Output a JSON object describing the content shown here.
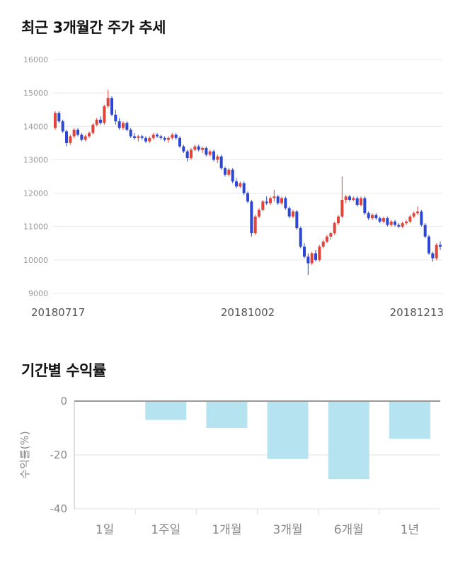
{
  "page": {
    "price_chart_title": "최근 3개월간 주가 추세",
    "returns_chart_title": "기간별 수익률"
  },
  "chart_data": [
    {
      "type": "candlestick",
      "title": "최근 3개월간 주가 추세",
      "ylim": [
        9000,
        16000
      ],
      "yticks": [
        16000,
        15000,
        14000,
        13000,
        12000,
        11000,
        10000,
        9000
      ],
      "xtick_labels": [
        "20180717",
        "20181002",
        "20181213"
      ],
      "up_color": "#e0443b",
      "down_color": "#2d46d4",
      "grid_color": "#e8e8e8",
      "axis_text_color": "#999999",
      "xlabel_color": "#555555",
      "candles": [
        [
          13950,
          14450,
          13900,
          14400
        ],
        [
          14400,
          14450,
          14100,
          14150
        ],
        [
          14150,
          14200,
          13800,
          13850
        ],
        [
          13850,
          13900,
          13400,
          13500
        ],
        [
          13500,
          13750,
          13450,
          13700
        ],
        [
          13700,
          13950,
          13650,
          13900
        ],
        [
          13900,
          13950,
          13700,
          13750
        ],
        [
          13750,
          13800,
          13550,
          13600
        ],
        [
          13600,
          13750,
          13550,
          13700
        ],
        [
          13700,
          13850,
          13650,
          13800
        ],
        [
          13800,
          14100,
          13750,
          14050
        ],
        [
          14050,
          14250,
          14000,
          14200
        ],
        [
          14200,
          14300,
          14050,
          14100
        ],
        [
          14100,
          14650,
          14050,
          14600
        ],
        [
          14600,
          15100,
          14550,
          14850
        ],
        [
          14850,
          14900,
          14300,
          14350
        ],
        [
          14350,
          14500,
          14050,
          14150
        ],
        [
          14150,
          14250,
          13900,
          13950
        ],
        [
          13950,
          14150,
          13900,
          14100
        ],
        [
          14100,
          14150,
          13850,
          13900
        ],
        [
          13900,
          13950,
          13650,
          13700
        ],
        [
          13700,
          13800,
          13600,
          13650
        ],
        [
          13650,
          13750,
          13550,
          13700
        ],
        [
          13700,
          13750,
          13600,
          13650
        ],
        [
          13650,
          13700,
          13500,
          13550
        ],
        [
          13550,
          13700,
          13500,
          13650
        ],
        [
          13650,
          13800,
          13600,
          13750
        ],
        [
          13750,
          13800,
          13650,
          13700
        ],
        [
          13700,
          13750,
          13600,
          13650
        ],
        [
          13650,
          13700,
          13550,
          13600
        ],
        [
          13600,
          13700,
          13500,
          13650
        ],
        [
          13650,
          13800,
          13600,
          13750
        ],
        [
          13750,
          13800,
          13600,
          13650
        ],
        [
          13650,
          13700,
          13350,
          13400
        ],
        [
          13400,
          13450,
          13200,
          13250
        ],
        [
          13250,
          13300,
          12950,
          13050
        ],
        [
          13050,
          13350,
          13000,
          13300
        ],
        [
          13300,
          13450,
          13250,
          13400
        ],
        [
          13400,
          13450,
          13250,
          13300
        ],
        [
          13300,
          13400,
          13200,
          13350
        ],
        [
          13350,
          13400,
          13100,
          13150
        ],
        [
          13150,
          13300,
          13100,
          13250
        ],
        [
          13250,
          13300,
          12950,
          13000
        ],
        [
          13000,
          13150,
          12900,
          13100
        ],
        [
          13100,
          13150,
          12700,
          12750
        ],
        [
          12750,
          12800,
          12500,
          12550
        ],
        [
          12550,
          12750,
          12500,
          12700
        ],
        [
          12700,
          12750,
          12300,
          12350
        ],
        [
          12350,
          12450,
          12150,
          12200
        ],
        [
          12200,
          12350,
          12150,
          12300
        ],
        [
          12300,
          12350,
          11950,
          12000
        ],
        [
          12000,
          12050,
          11700,
          11750
        ],
        [
          11750,
          11800,
          10700,
          10800
        ],
        [
          10800,
          11350,
          10750,
          11300
        ],
        [
          11300,
          11550,
          11250,
          11500
        ],
        [
          11500,
          11800,
          11450,
          11750
        ],
        [
          11750,
          11900,
          11650,
          11700
        ],
        [
          11700,
          11900,
          11650,
          11850
        ],
        [
          11850,
          12100,
          11750,
          11900
        ],
        [
          11900,
          11950,
          11650,
          11700
        ],
        [
          11700,
          11900,
          11650,
          11850
        ],
        [
          11850,
          11900,
          11500,
          11550
        ],
        [
          11550,
          11600,
          11250,
          11300
        ],
        [
          11300,
          11500,
          11250,
          11450
        ],
        [
          11450,
          11500,
          10900,
          10950
        ],
        [
          10950,
          11000,
          10350,
          10400
        ],
        [
          10400,
          10500,
          10050,
          10100
        ],
        [
          10100,
          10200,
          9550,
          9900
        ],
        [
          9900,
          10250,
          9850,
          10200
        ],
        [
          10200,
          10300,
          9950,
          10000
        ],
        [
          10000,
          10450,
          9950,
          10400
        ],
        [
          10400,
          10600,
          10350,
          10550
        ],
        [
          10550,
          10750,
          10500,
          10700
        ],
        [
          10700,
          10850,
          10600,
          10800
        ],
        [
          10800,
          11150,
          10750,
          11100
        ],
        [
          11100,
          11350,
          11050,
          11300
        ],
        [
          11300,
          12500,
          11250,
          11800
        ],
        [
          11800,
          11950,
          11700,
          11900
        ],
        [
          11900,
          11950,
          11750,
          11800
        ],
        [
          11800,
          11900,
          11750,
          11850
        ],
        [
          11850,
          11900,
          11600,
          11650
        ],
        [
          11650,
          11900,
          11600,
          11850
        ],
        [
          11850,
          11900,
          11350,
          11400
        ],
        [
          11400,
          11450,
          11200,
          11250
        ],
        [
          11250,
          11400,
          11200,
          11350
        ],
        [
          11350,
          11400,
          11200,
          11250
        ],
        [
          11250,
          11300,
          11100,
          11150
        ],
        [
          11150,
          11300,
          11100,
          11250
        ],
        [
          11250,
          11300,
          11000,
          11050
        ],
        [
          11050,
          11200,
          11000,
          11150
        ],
        [
          11150,
          11200,
          11000,
          11050
        ],
        [
          11050,
          11100,
          10950,
          11000
        ],
        [
          11000,
          11150,
          10950,
          11100
        ],
        [
          11100,
          11200,
          11050,
          11150
        ],
        [
          11150,
          11350,
          11100,
          11300
        ],
        [
          11300,
          11450,
          11250,
          11400
        ],
        [
          11400,
          11600,
          11350,
          11450
        ],
        [
          11450,
          11500,
          11000,
          11050
        ],
        [
          11050,
          11100,
          10650,
          10700
        ],
        [
          10700,
          10750,
          10150,
          10200
        ],
        [
          10200,
          10250,
          9950,
          10050
        ],
        [
          10050,
          10500,
          10000,
          10450
        ],
        [
          10450,
          10550,
          10300,
          10400
        ]
      ]
    },
    {
      "type": "bar",
      "title": "기간별 수익률",
      "ylabel": "수익률(%)",
      "categories": [
        "1일",
        "1주일",
        "1개월",
        "3개월",
        "6개월",
        "1년"
      ],
      "values": [
        0,
        -7,
        -10,
        -21.5,
        -29,
        -14
      ],
      "ylim": [
        -40,
        0
      ],
      "yticks": [
        0,
        -20,
        -40
      ],
      "bar_color": "#b5e4f0",
      "zero_line_color": "#777777",
      "grid_color": "#e2e2e2",
      "axis_text_color": "#8a8a8a"
    }
  ]
}
